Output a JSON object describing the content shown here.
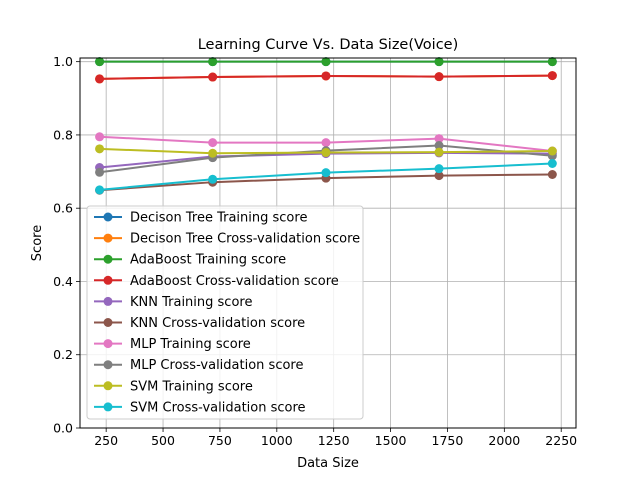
{
  "chart_data": {
    "type": "line",
    "title": "Learning Curve Vs. Data Size(Voice)",
    "xlabel": "Data Size",
    "ylabel": "Score",
    "xlim": [
      135,
      2315
    ],
    "ylim": [
      0.0,
      1.01
    ],
    "grid": true,
    "legend_position": "center-left",
    "xticks": [
      250,
      500,
      750,
      1000,
      1250,
      1500,
      1750,
      2000,
      2250
    ],
    "xtick_labels": [
      "250",
      "500",
      "750",
      "1000",
      "1250",
      "1500",
      "1750",
      "2000",
      "2250"
    ],
    "yticks": [
      0.0,
      0.2,
      0.4,
      0.6,
      0.8,
      1.0
    ],
    "ytick_labels": [
      "0.0",
      "0.2",
      "0.4",
      "0.6",
      "0.8",
      "1.0"
    ],
    "x": [
      221,
      718,
      1216,
      1713,
      2211
    ],
    "series": [
      {
        "name": "Decison Tree Training score",
        "color": "#1f77b4",
        "values": [
          1.0,
          1.0,
          1.0,
          1.0,
          1.0
        ]
      },
      {
        "name": "Decison Tree Cross-validation score",
        "color": "#ff7f0e",
        "values": [
          0.953,
          0.958,
          0.961,
          0.959,
          0.962
        ]
      },
      {
        "name": "AdaBoost Training score",
        "color": "#2ca02c",
        "values": [
          1.0,
          1.0,
          1.0,
          1.0,
          1.0
        ]
      },
      {
        "name": "AdaBoost Cross-validation score",
        "color": "#d62728",
        "values": [
          0.953,
          0.958,
          0.961,
          0.959,
          0.962
        ]
      },
      {
        "name": "KNN Training score",
        "color": "#9467bd",
        "values": [
          0.711,
          0.741,
          0.749,
          0.751,
          0.749
        ]
      },
      {
        "name": "KNN Cross-validation score",
        "color": "#8c564b",
        "values": [
          0.649,
          0.671,
          0.682,
          0.689,
          0.692
        ]
      },
      {
        "name": "MLP Training score",
        "color": "#e377c2",
        "values": [
          0.795,
          0.779,
          0.779,
          0.79,
          0.756
        ]
      },
      {
        "name": "MLP Cross-validation score",
        "color": "#7f7f7f",
        "values": [
          0.698,
          0.738,
          0.757,
          0.771,
          0.743
        ]
      },
      {
        "name": "SVM Training score",
        "color": "#bcbd22",
        "values": [
          0.762,
          0.75,
          0.752,
          0.753,
          0.756
        ]
      },
      {
        "name": "SVM Cross-validation score",
        "color": "#17becf",
        "values": [
          0.65,
          0.679,
          0.697,
          0.708,
          0.722
        ]
      }
    ]
  }
}
